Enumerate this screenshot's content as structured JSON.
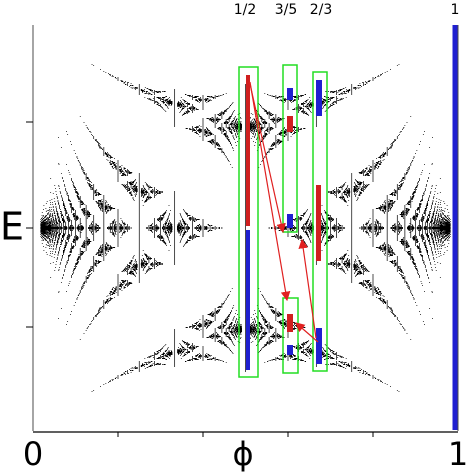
{
  "figure": {
    "top_labels": [
      "1/2",
      "3/5",
      "2/3",
      "1"
    ],
    "y_label": "E",
    "x_labels": [
      "0",
      "ϕ",
      "1"
    ]
  }
}
